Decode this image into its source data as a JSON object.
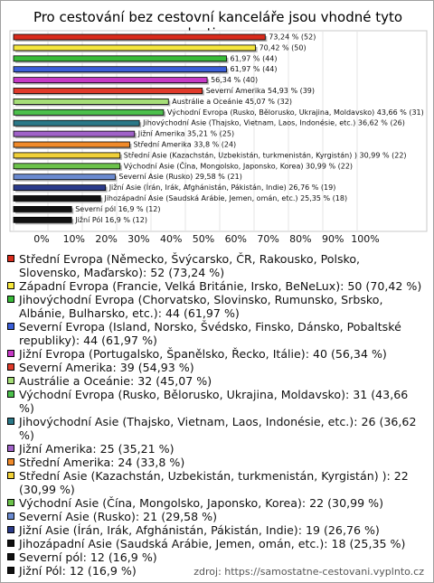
{
  "chart_data": {
    "type": "bar",
    "orientation": "horizontal",
    "title": "Pro cestování bez cestovní kanceláře jsou vhodné tyto destinace:",
    "categories": [
      "Střední Evropa (Německo, Švýcarsko, ČR, Rakousko, Polsko, Slovensko, Maďarsko): 52 (73,24 %)",
      "Západní Evropa (Francie, Velká Británie, Irsko, BeNeLux): 50 (70,42 %)",
      "Jihovýchodní Evropa (Chorvatsko, Slovinsko, Rumunsko, Srbsko, Albánie, Bulharsko, etc.): 44 (61,97 %)",
      "Severní Evropa (Island, Norsko, Švédsko, Finsko, Dánsko, Pobaltské republiky): 44 (61,97 %)",
      "Jižní Evropa (Portugalsko, Španělsko, Řecko, Itálie): 40 (56,34 %)",
      "Severní Amerika: 39 (54,93 %)",
      "Austrálie a Oceánie: 32 (45,07 %)",
      "Východní Evropa (Rusko, Bělorusko, Ukrajina, Moldavsko): 31 (43,66 %)",
      "Jihovýchodní Asie (Thajsko, Vietnam, Laos, Indonésie, etc.): 26 (36,62 %)",
      "Jižní Amerika: 25 (35,21 %)",
      "Střední Amerika: 24 (33,8 %)",
      "Střední Asie (Kazachstán, Uzbekistán, turkmenistán, Kyrgistán) ): 22 (30,99 %)",
      "Východní Asie (Čína, Mongolsko, Japonsko, Korea): 22 (30,99 %)",
      "Severní Asie (Rusko): 21 (29,58 %)",
      "Jižní Asie (Írán, Irák, Afghánistán, Pákistán, Indie): 19 (26,76 %)",
      "Jihozápadní Asie (Saudská Arábie, Jemen, omán, etc.): 18 (25,35 %)",
      "Severní pól: 12 (16,9 %)",
      "Jižní Pól: 12 (16,9 %)"
    ],
    "values": [
      73.24,
      70.42,
      61.97,
      61.97,
      56.34,
      54.93,
      45.07,
      43.66,
      36.62,
      35.21,
      33.8,
      30.99,
      30.99,
      29.58,
      26.76,
      25.35,
      16.9,
      16.9
    ],
    "value_labels": [
      "73,24 % (52)",
      "70,42 % (50)",
      "61,97 % (44)",
      "61,97 % (44)",
      "56,34 % (40)",
      "Severní Amerika 54,93 % (39)",
      "Austrálie a Oceánie 45,07 % (32)",
      "Východní Evropa (Rusko, Bělorusko, Ukrajina, Moldavsko) 43,66 % (31)",
      "Jihovýchodní Asie (Thajsko, Vietnam, Laos, Indonésie, etc.) 36,62 % (26)",
      "Jižní Amerika 35,21 % (25)",
      "Střední Amerika 33,8 % (24)",
      "Střední Asie (Kazachstán, Uzbekistán, turkmenistán, Kyrgistán) ) 30,99 % (22)",
      "Východní Asie (Čína, Mongolsko, Japonsko, Korea) 30,99 % (22)",
      "Severní Asie (Rusko) 29,58 % (21)",
      "Jižní Asie (Írán, Irák, Afghánistán, Pákistán, Indie) 26,76 % (19)",
      "Jihozápadní Asie (Saudská Arábie, Jemen, omán, etc.) 25,35 % (18)",
      "Severní pól 16,9 % (12)",
      "Jižní Pól 16,9 % (12)"
    ],
    "colors": [
      "#d92b1c",
      "#f5e63c",
      "#38bb38",
      "#3a5ed8",
      "#c63ac6",
      "#e03a2a",
      "#a6de78",
      "#4cc04c",
      "#2a7888",
      "#a062c8",
      "#f08a2a",
      "#f0d038",
      "#6cc24a",
      "#6a8ad0",
      "#2a3a8a",
      "#111111",
      "#111111",
      "#111111"
    ],
    "xlim": [
      0,
      100
    ],
    "xticks": [
      {
        "value": 0,
        "label": "0%"
      },
      {
        "value": 10,
        "label": "10%"
      },
      {
        "value": 20,
        "label": "20%"
      },
      {
        "value": 30,
        "label": "30%"
      },
      {
        "value": 40,
        "label": "40%"
      },
      {
        "value": 50,
        "label": "50%"
      },
      {
        "value": 60,
        "label": "60%"
      },
      {
        "value": 70,
        "label": "70%"
      },
      {
        "value": 80,
        "label": "80%"
      },
      {
        "value": 90,
        "label": "90%"
      },
      {
        "value": 100,
        "label": "100%"
      }
    ],
    "grid": true,
    "source": "zdroj: https://samostatne-cestovani.vyplnto.cz"
  }
}
